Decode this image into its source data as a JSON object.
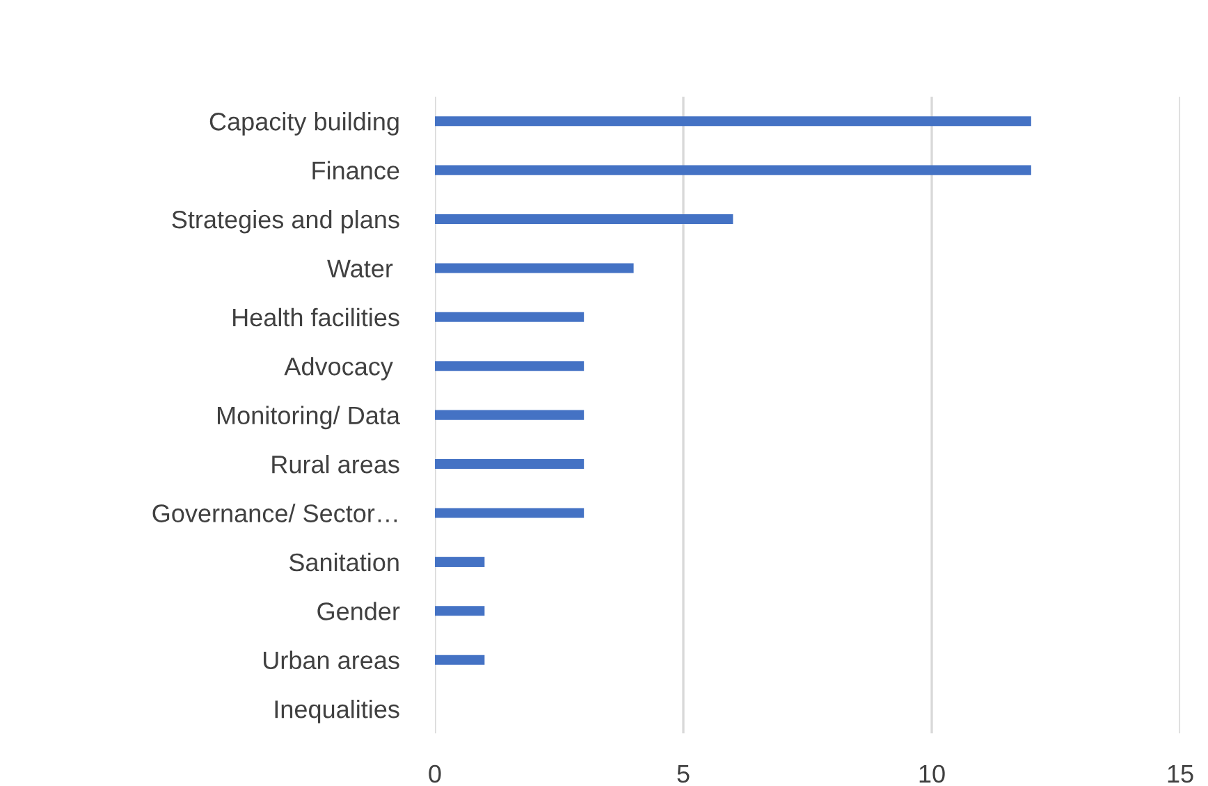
{
  "chart_data": {
    "type": "bar",
    "orientation": "horizontal",
    "categories": [
      "Capacity building",
      "Finance",
      "Strategies and plans",
      "Water ",
      "Health facilities",
      "Advocacy ",
      "Monitoring/ Data",
      "Rural areas",
      "Governance/ Sector…",
      "Sanitation",
      "Gender",
      "Urban areas",
      "Inequalities"
    ],
    "values": [
      12,
      12,
      6,
      4,
      3,
      3,
      3,
      3,
      3,
      1,
      1,
      1,
      0
    ],
    "color": "#4472c4",
    "xlim": [
      0,
      15
    ],
    "xticks": [
      0,
      5,
      10,
      15
    ],
    "grid": "x"
  }
}
